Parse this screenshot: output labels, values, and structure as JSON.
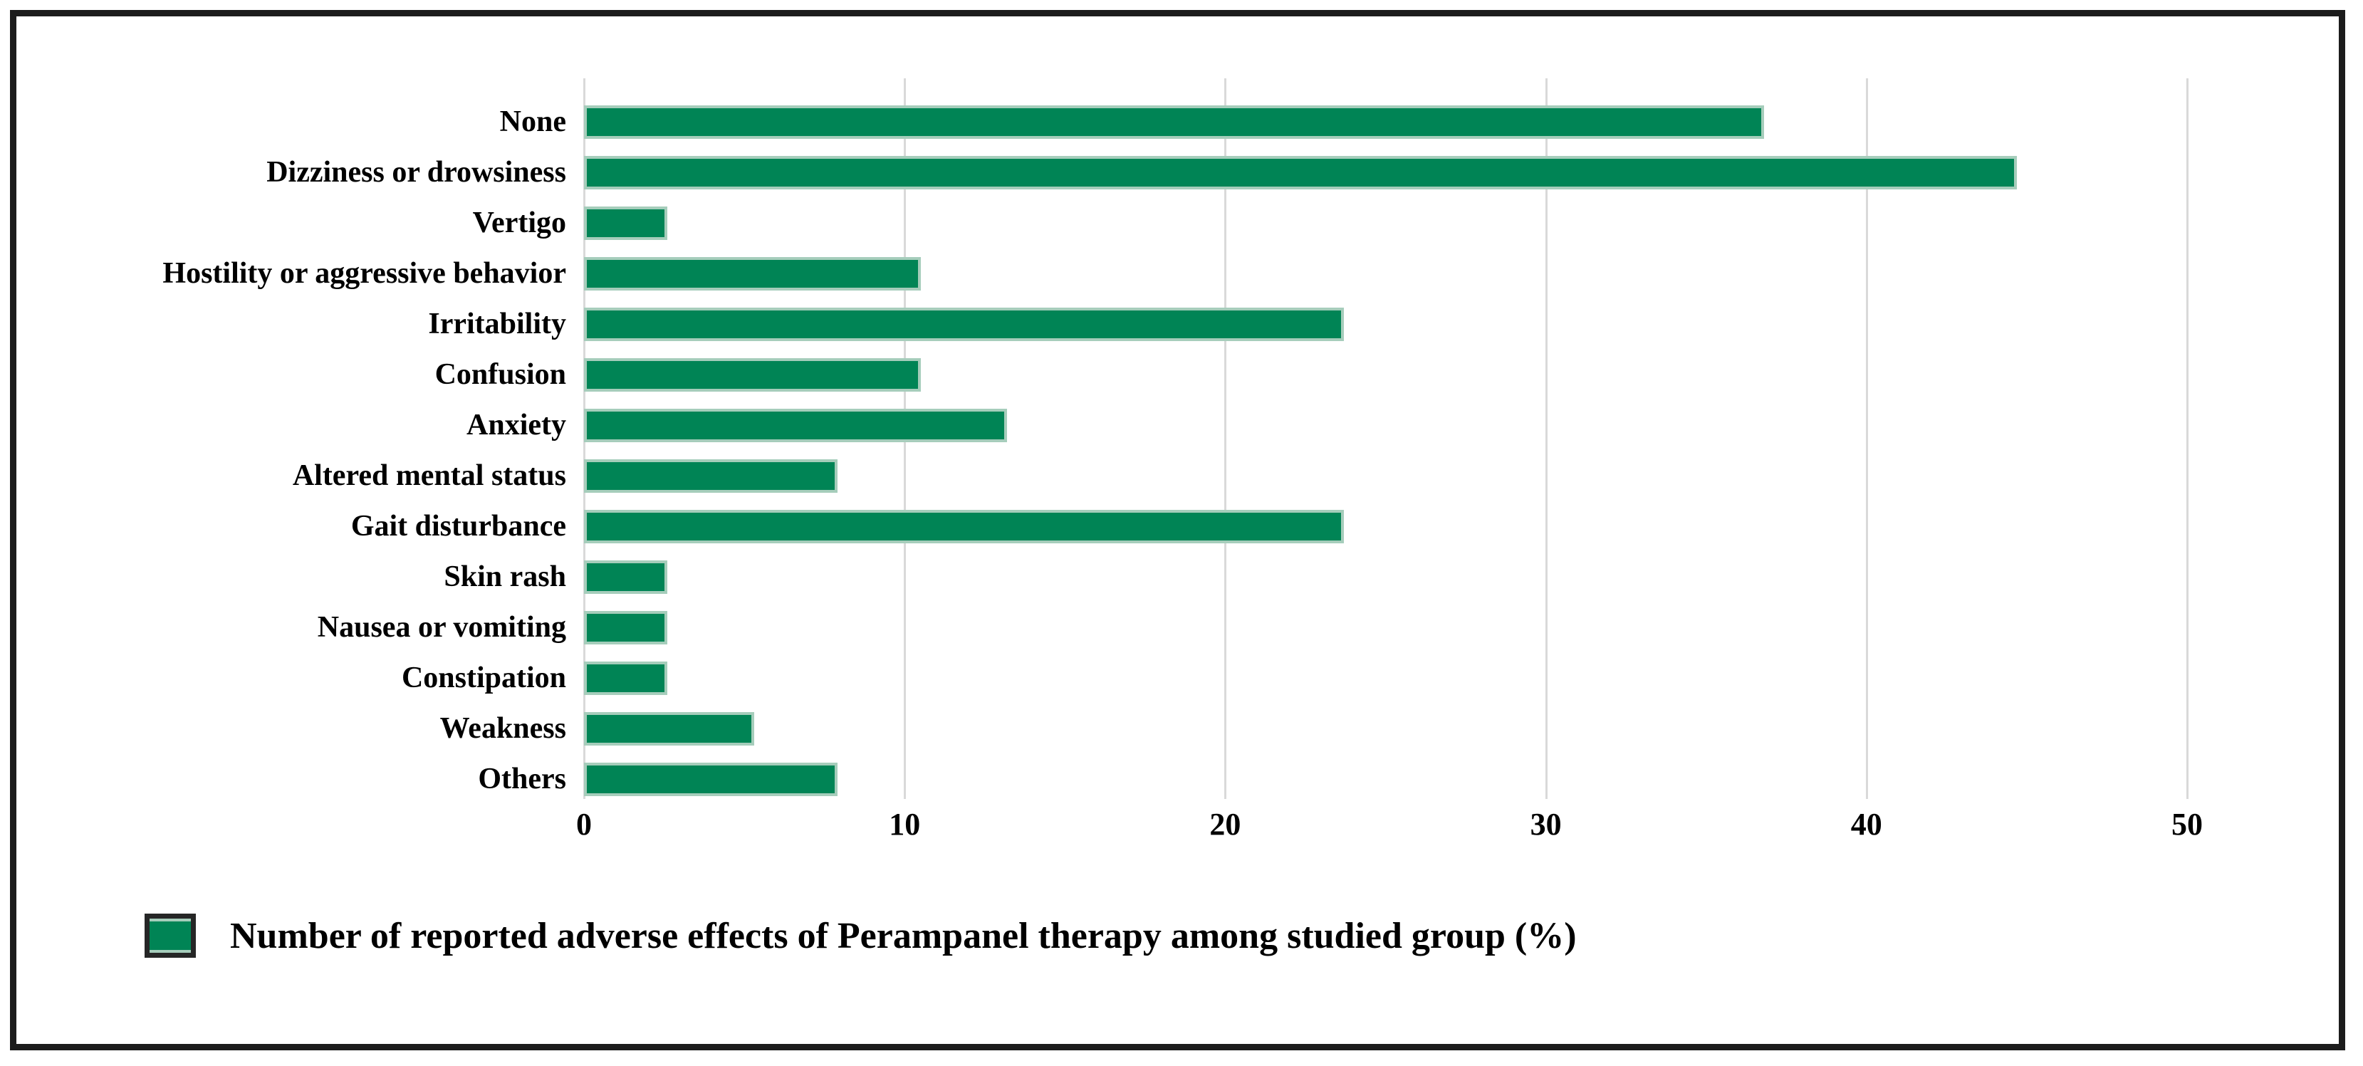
{
  "figure": {
    "background": "#ffffff",
    "frame_border_color": "#1c1c1c"
  },
  "chart_data": {
    "type": "bar",
    "orientation": "horizontal",
    "title": "",
    "xlabel": "",
    "ylabel": "",
    "categories": [
      "None",
      "Dizziness or drowsiness",
      "Vertigo",
      "Hostility or aggressive behavior",
      "Irritability",
      "Confusion",
      "Anxiety",
      "Altered mental status",
      "Gait disturbance",
      "Skin rash",
      "Nausea or vomiting",
      "Constipation",
      "Weakness",
      "Others"
    ],
    "values": [
      36.8,
      44.7,
      2.6,
      10.5,
      23.7,
      10.5,
      13.2,
      7.9,
      23.7,
      2.6,
      2.6,
      2.6,
      5.3,
      7.9
    ],
    "legend": "Number of reported adverse effects of Perampanel therapy among studied group (%)",
    "legend_position": "bottom-left",
    "x_ticks": [
      0,
      10,
      20,
      30,
      40,
      50
    ],
    "x_tick_labels": [
      "0",
      "10",
      "20",
      "30",
      "40",
      "50"
    ],
    "xlim": [
      0,
      52
    ],
    "grid": "vertical",
    "colors": {
      "bar": "#008455",
      "bar_edge": "#a6cdbb",
      "gridline": "#d9d9d9",
      "text": "#000000"
    }
  }
}
